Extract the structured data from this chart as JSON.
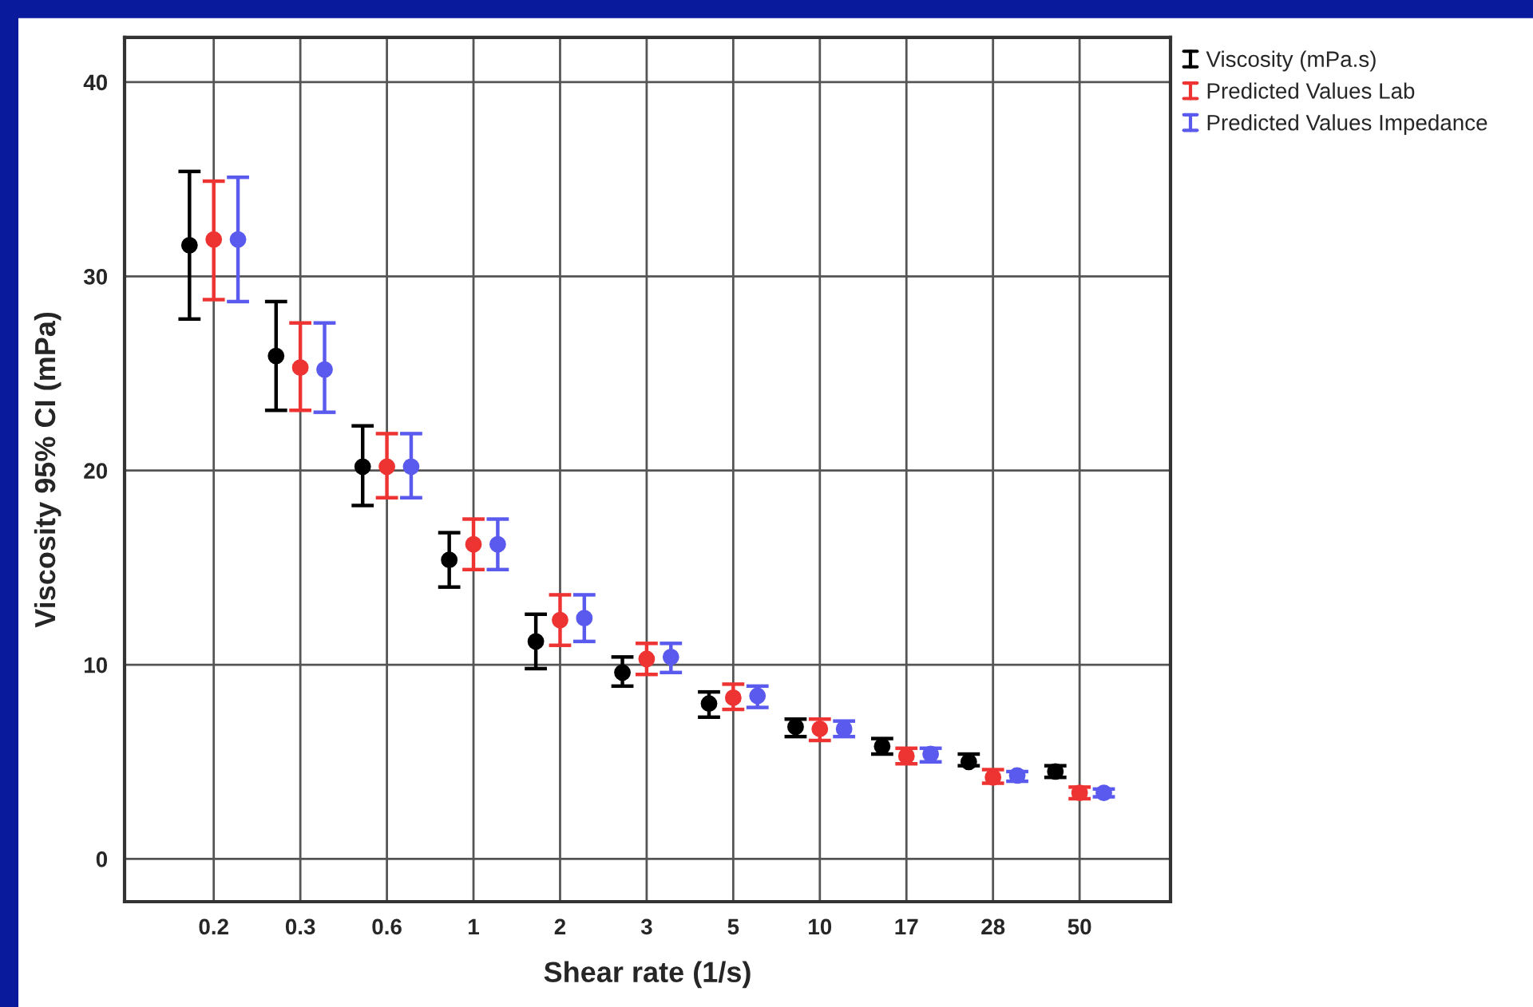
{
  "chart_data": {
    "type": "scatter",
    "xlabel": "Shear rate (1/s)",
    "ylabel": "Viscosity 95% CI (mPa)",
    "categories": [
      "0.2",
      "0.3",
      "0.6",
      "1",
      "2",
      "3",
      "5",
      "10",
      "17",
      "28",
      "50"
    ],
    "ylim": [
      -2.2,
      42.3
    ],
    "yticks": [
      0,
      10,
      20,
      30,
      40
    ],
    "grid": true,
    "legend": "top right",
    "marker": "circle",
    "series": [
      {
        "name": "Viscosity (mPa.s)",
        "color": "#000000",
        "values": [
          31.6,
          25.9,
          20.2,
          15.4,
          11.2,
          9.6,
          8.0,
          6.8,
          5.8,
          5.0,
          4.5
        ],
        "errors": [
          [
            27.8,
            35.4
          ],
          [
            23.1,
            28.7
          ],
          [
            18.2,
            22.3
          ],
          [
            14.0,
            16.8
          ],
          [
            9.8,
            12.6
          ],
          [
            8.9,
            10.4
          ],
          [
            7.3,
            8.6
          ],
          [
            6.3,
            7.2
          ],
          [
            5.4,
            6.2
          ],
          [
            4.8,
            5.4
          ],
          [
            4.2,
            4.8
          ]
        ]
      },
      {
        "name": "Predicted Values Lab",
        "color": "#ee3333",
        "values": [
          31.9,
          25.3,
          20.2,
          16.2,
          12.3,
          10.3,
          8.3,
          6.7,
          5.3,
          4.2,
          3.4
        ],
        "errors": [
          [
            28.8,
            34.9
          ],
          [
            23.1,
            27.6
          ],
          [
            18.6,
            21.9
          ],
          [
            14.9,
            17.5
          ],
          [
            11.0,
            13.6
          ],
          [
            9.5,
            11.1
          ],
          [
            7.7,
            9.0
          ],
          [
            6.1,
            7.2
          ],
          [
            4.9,
            5.7
          ],
          [
            3.9,
            4.6
          ],
          [
            3.1,
            3.7
          ]
        ]
      },
      {
        "name": "Predicted Values Impedance",
        "color": "#5a5aee",
        "values": [
          31.9,
          25.2,
          20.2,
          16.2,
          12.4,
          10.4,
          8.4,
          6.7,
          5.4,
          4.3,
          3.4
        ],
        "errors": [
          [
            28.7,
            35.1
          ],
          [
            23.0,
            27.6
          ],
          [
            18.6,
            21.9
          ],
          [
            14.9,
            17.5
          ],
          [
            11.2,
            13.6
          ],
          [
            9.6,
            11.1
          ],
          [
            7.8,
            8.9
          ],
          [
            6.3,
            7.1
          ],
          [
            5.0,
            5.7
          ],
          [
            4.0,
            4.5
          ],
          [
            3.2,
            3.6
          ]
        ]
      }
    ]
  }
}
